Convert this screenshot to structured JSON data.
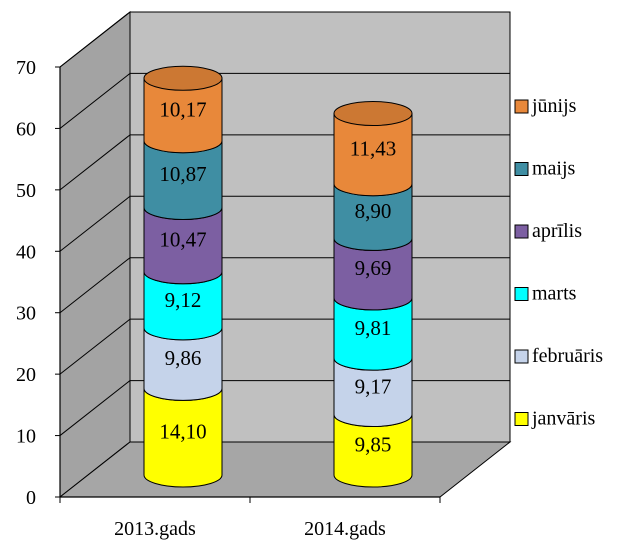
{
  "chart_data": {
    "type": "bar",
    "stacked": true,
    "style": "3d-cylinder",
    "categories": [
      "2013.gads",
      "2014.gads"
    ],
    "series": [
      {
        "name": "janvāris",
        "values": [
          14.1,
          9.85
        ],
        "labels": [
          "14,10",
          "9,85"
        ],
        "color": "#FFFF00"
      },
      {
        "name": "februāris",
        "values": [
          9.86,
          9.17
        ],
        "labels": [
          "9,86",
          "9,17"
        ],
        "color": "#C5D3EA"
      },
      {
        "name": "marts",
        "values": [
          9.12,
          9.81
        ],
        "labels": [
          "9,12",
          "9,81"
        ],
        "color": "#00FFFF"
      },
      {
        "name": "aprīlis",
        "values": [
          10.47,
          9.69
        ],
        "labels": [
          "10,47",
          "9,69"
        ],
        "color": "#7C5FA2"
      },
      {
        "name": "maijs",
        "values": [
          10.87,
          8.9
        ],
        "labels": [
          "10,87",
          "8,90"
        ],
        "color": "#3F8EA3"
      },
      {
        "name": "jūnijs",
        "values": [
          10.17,
          11.43
        ],
        "labels": [
          "10,17",
          "11,43"
        ],
        "color": "#E8883A"
      }
    ],
    "yticks": [
      "0",
      "10",
      "20",
      "30",
      "40",
      "50",
      "60",
      "70"
    ],
    "ylim": [
      0,
      70
    ],
    "grid": true,
    "legend": "right",
    "wall_color": "#C0C0C0",
    "floor_color": "#A6A6A6"
  }
}
